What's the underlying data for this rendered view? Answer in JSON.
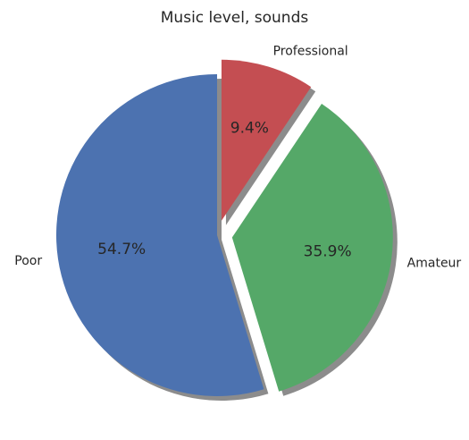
{
  "chart_data": {
    "type": "pie",
    "title": "Music level, sounds",
    "categories": [
      "Poor",
      "Amateur",
      "Professional"
    ],
    "values": [
      54.7,
      35.9,
      9.4
    ],
    "percent_labels": [
      "54.7%",
      "35.9%",
      "9.4%"
    ],
    "colors": [
      "#4c72b0",
      "#55a868",
      "#c44e52"
    ],
    "exploded": [
      false,
      true,
      true
    ],
    "shadow": true,
    "start_angle_deg": 90,
    "direction": "counterclockwise"
  }
}
